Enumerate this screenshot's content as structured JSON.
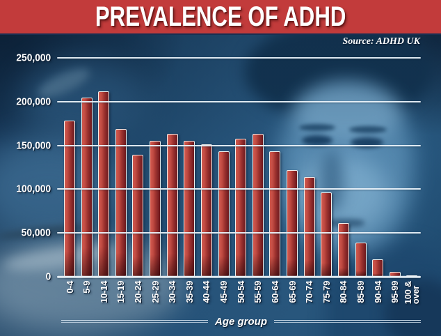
{
  "header": {
    "title": "PREVALENCE OF ADHD",
    "source": "Source: ADHD UK"
  },
  "chart_data": {
    "type": "bar",
    "title": "PREVALENCE OF ADHD",
    "source": "Source: ADHD UK",
    "categories": [
      "0-4",
      "5-9",
      "10-14",
      "15-19",
      "20-24",
      "25-29",
      "30-34",
      "35-39",
      "40-44",
      "45-49",
      "50-54",
      "55-59",
      "60-64",
      "65-69",
      "70-74",
      "75-79",
      "80-84",
      "85-89",
      "90-94",
      "95-99",
      "100 &\nover"
    ],
    "values": [
      178000,
      205000,
      212000,
      169000,
      139000,
      155000,
      163000,
      155000,
      151000,
      143000,
      158000,
      163000,
      143000,
      122000,
      114000,
      96000,
      61000,
      39000,
      20000,
      6000,
      2000
    ],
    "xlabel": "Age group",
    "ylabel": "",
    "ylim": [
      0,
      250000
    ],
    "ytick_values": [
      0,
      50000,
      100000,
      150000,
      200000,
      250000
    ],
    "ytick_labels": [
      "0",
      "50,000",
      "100,000",
      "150,000",
      "200,000",
      "250,000"
    ],
    "grid": true,
    "legend": "none",
    "colors": {
      "banner": "#c23b3b",
      "bar_light": "#d25a4e",
      "bar_dark": "#6f1b1e",
      "bar_border": "#f2f1ee",
      "gridline": "#eaf2f9",
      "text": "#ffffff",
      "background_tint": "#24527a"
    }
  }
}
